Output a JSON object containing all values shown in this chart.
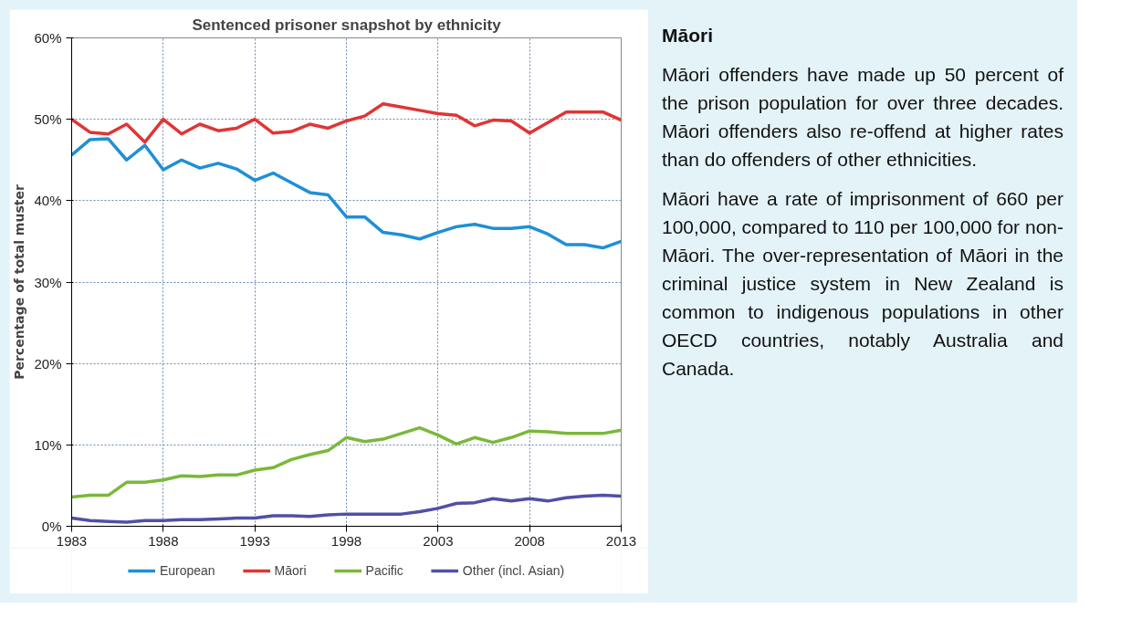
{
  "chart_data": [
    {
      "type": "line",
      "title": "Sentenced prisoner snapshot by ethnicity",
      "ylabel": "Percentage of total muster",
      "x": [
        1983,
        1984,
        1985,
        1986,
        1987,
        1988,
        1989,
        1990,
        1991,
        1992,
        1993,
        1994,
        1995,
        1996,
        1997,
        1998,
        1999,
        2000,
        2001,
        2002,
        2003,
        2004,
        2005,
        2006,
        2007,
        2008,
        2009,
        2010,
        2011,
        2012,
        2013
      ],
      "series": [
        {
          "name": "European",
          "color": "#1f8fd6",
          "values": [
            45.6,
            47.5,
            47.6,
            45.0,
            46.8,
            43.8,
            45.0,
            44.0,
            44.6,
            43.9,
            42.5,
            43.4,
            42.2,
            41.0,
            40.7,
            38.0,
            38.0,
            36.1,
            35.8,
            35.3,
            36.1,
            36.8,
            37.1,
            36.6,
            36.6,
            36.8,
            35.9,
            34.6,
            34.6,
            34.2,
            35.0
          ]
        },
        {
          "name": "Māori",
          "color": "#e03535",
          "values": [
            50.0,
            48.4,
            48.2,
            49.4,
            47.2,
            50.0,
            48.2,
            49.4,
            48.6,
            48.9,
            50.0,
            48.3,
            48.5,
            49.4,
            48.9,
            49.8,
            50.4,
            51.9,
            51.5,
            51.1,
            50.7,
            50.5,
            49.2,
            49.9,
            49.8,
            48.3,
            49.6,
            50.9,
            50.9,
            50.9,
            49.9
          ]
        },
        {
          "name": "Pacific",
          "color": "#7ab83a",
          "values": [
            3.6,
            3.8,
            3.8,
            5.4,
            5.4,
            5.7,
            6.2,
            6.1,
            6.3,
            6.3,
            6.9,
            7.2,
            8.2,
            8.8,
            9.3,
            10.9,
            10.4,
            10.7,
            11.4,
            12.1,
            11.2,
            10.1,
            10.9,
            10.3,
            10.9,
            11.7,
            11.6,
            11.4,
            11.4,
            11.4,
            11.8
          ]
        },
        {
          "name": "Other (incl. Asian)",
          "color": "#5050a8",
          "values": [
            1.0,
            0.7,
            0.6,
            0.5,
            0.7,
            0.7,
            0.8,
            0.8,
            0.9,
            1.0,
            1.0,
            1.3,
            1.3,
            1.2,
            1.4,
            1.5,
            1.5,
            1.5,
            1.5,
            1.8,
            2.2,
            2.8,
            2.9,
            3.4,
            3.1,
            3.4,
            3.1,
            3.5,
            3.7,
            3.8,
            3.7
          ]
        }
      ],
      "xlim": [
        1983,
        2013
      ],
      "xticks": [
        1983,
        1988,
        1993,
        1998,
        2003,
        2008,
        2013
      ],
      "ylim": [
        0,
        60
      ],
      "yticks": [
        {
          "value": 0,
          "label": "0%"
        },
        {
          "value": 10,
          "label": "10%"
        },
        {
          "value": 20,
          "label": "20%"
        },
        {
          "value": 30,
          "label": "30%"
        },
        {
          "value": 40,
          "label": "40%"
        },
        {
          "value": 50,
          "label": "50%"
        },
        {
          "value": 60,
          "label": "60%"
        }
      ],
      "grid": true,
      "legend": "bottom",
      "line_style": "solid"
    },
    {
      "type": "other",
      "title": "Māori",
      "annotations": [
        "Māori offenders have made up 50 percent of the prison population for over three decades. Māori offenders also re-offend at higher rates than do offenders of other ethnicities.",
        "Māori have a rate of imprisonment of 660 per 100,000, compared to 110 per 100,000 for non-Māori. The over-representation of Māori in the criminal justice system in New Zealand is common to indigenous populations in other OECD countries, notably Australia and Canada."
      ]
    }
  ]
}
